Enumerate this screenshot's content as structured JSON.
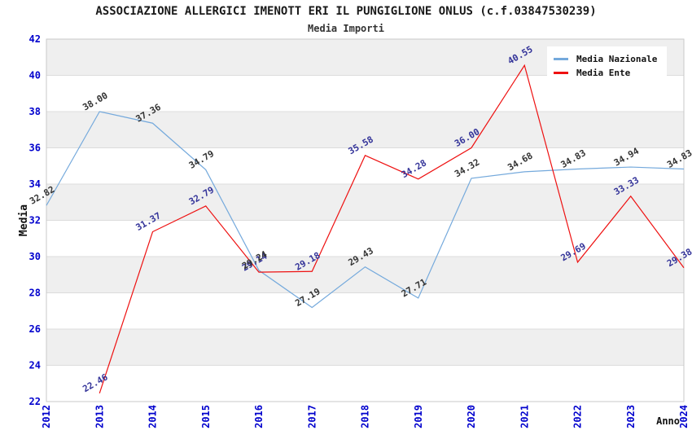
{
  "header": {
    "title": "ASSOCIAZIONE ALLERGICI IMENOTT ERI IL PUNGIGLIONE ONLUS (c.f.03847530239)",
    "subtitle": "Media Importi"
  },
  "axes": {
    "y_label": "Media",
    "x_label": "Anno"
  },
  "legend": {
    "position": "top-right",
    "items": [
      {
        "label": "Media Nazionale",
        "color": "#74A9DC"
      },
      {
        "label": "Media Ente",
        "color": "#EE1111"
      }
    ]
  },
  "colors": {
    "tick_label": "#0000CD",
    "band_gray": "#EFEFEF",
    "gridline": "#DCDCDC",
    "plot_border": "#C9C9C9",
    "axis_title": "#111111"
  },
  "chart_data": {
    "type": "line",
    "title": "ASSOCIAZIONE ALLERGICI IMENOTT ERI IL PUNGIGLIONE ONLUS (c.f.03847530239)",
    "subtitle": "Media Importi",
    "xlabel": "Anno",
    "ylabel": "Media",
    "x": [
      2012,
      2013,
      2014,
      2015,
      2016,
      2017,
      2018,
      2019,
      2020,
      2021,
      2022,
      2023,
      2024
    ],
    "ylim": [
      22,
      42
    ],
    "yticks": [
      22,
      24,
      26,
      28,
      30,
      32,
      34,
      36,
      38,
      40,
      42
    ],
    "grid": "horizontal-bands-alternating",
    "legend_position": "top-right",
    "series": [
      {
        "name": "Media Nazionale",
        "color": "#74A9DC",
        "label_color": "#333333",
        "values": [
          32.82,
          38.0,
          37.36,
          34.79,
          29.24,
          27.19,
          29.43,
          27.71,
          34.32,
          34.68,
          34.83,
          34.94,
          34.83
        ],
        "labels": [
          "32.82",
          "38.00",
          "37.36",
          "34.79",
          "29.24",
          "27.19",
          "29.43",
          "27.71",
          "34.32",
          "34.68",
          "34.83",
          "34.94",
          "34.83"
        ]
      },
      {
        "name": "Media Ente",
        "color": "#EE1111",
        "label_color": "#333399",
        "values": [
          null,
          22.46,
          31.37,
          32.79,
          29.14,
          29.18,
          35.58,
          34.28,
          36.0,
          40.55,
          29.69,
          33.33,
          29.38
        ],
        "labels": [
          null,
          "22.46",
          "31.37",
          "32.79",
          "29.14",
          "29.18",
          "35.58",
          "34.28",
          "36.00",
          "40.55",
          "29.69",
          "33.33",
          "29.38"
        ]
      }
    ]
  }
}
